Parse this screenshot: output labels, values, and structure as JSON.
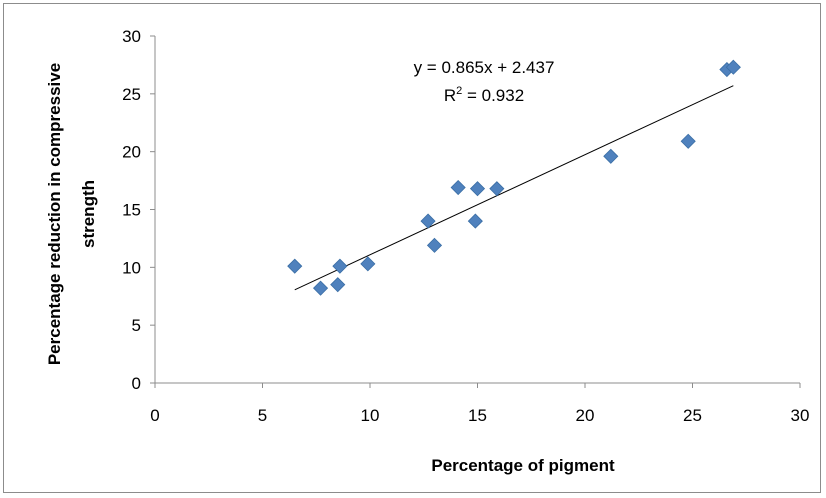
{
  "chart_data": {
    "type": "scatter",
    "title": "",
    "xlabel": "Percentage of pigment",
    "ylabel_lines": [
      "Percentage reduction in compressive",
      "strength"
    ],
    "xlim": [
      0,
      30
    ],
    "ylim": [
      0,
      30
    ],
    "xticks": [
      "0",
      "5",
      "10",
      "15",
      "20",
      "25",
      "30"
    ],
    "yticks": [
      "0",
      "5",
      "10",
      "15",
      "20",
      "25",
      "30"
    ],
    "grid": false,
    "legend": "none",
    "marker_color": "#4f81bd",
    "trendline_color": "#000000",
    "points": [
      {
        "x": 6.5,
        "y": 10.1
      },
      {
        "x": 7.7,
        "y": 8.2
      },
      {
        "x": 8.5,
        "y": 8.5
      },
      {
        "x": 8.6,
        "y": 10.1
      },
      {
        "x": 9.9,
        "y": 10.3
      },
      {
        "x": 12.7,
        "y": 14.0
      },
      {
        "x": 13.0,
        "y": 11.9
      },
      {
        "x": 14.1,
        "y": 16.9
      },
      {
        "x": 14.9,
        "y": 14.0
      },
      {
        "x": 15.0,
        "y": 16.8
      },
      {
        "x": 15.9,
        "y": 16.8
      },
      {
        "x": 21.2,
        "y": 19.6
      },
      {
        "x": 24.8,
        "y": 20.9
      },
      {
        "x": 26.6,
        "y": 27.1
      },
      {
        "x": 26.9,
        "y": 27.3
      }
    ],
    "trendline": {
      "slope": 0.865,
      "intercept": 2.437,
      "x_range": [
        6.5,
        26.9
      ]
    },
    "annotations": {
      "equation": "y = 0.865x + 2.437",
      "r2_prefix": "R",
      "r2_superscript": "2",
      "r2_suffix": " = 0.932"
    }
  }
}
